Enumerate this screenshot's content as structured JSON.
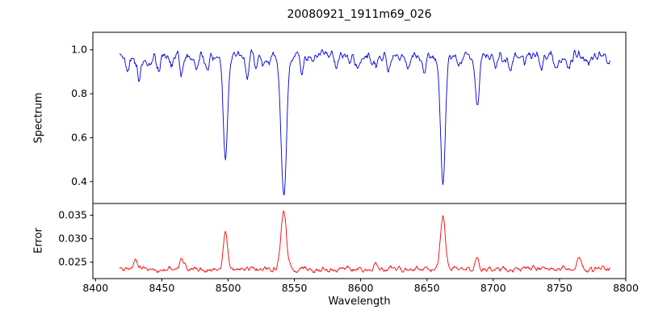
{
  "chart_data": {
    "type": "line",
    "title": "20080921_1911m69_026",
    "xlabel": "Wavelength",
    "xlim": [
      8398,
      8800
    ],
    "xticks": [
      8400,
      8450,
      8500,
      8550,
      8600,
      8650,
      8700,
      8750,
      8800
    ],
    "xtick_labels": [
      "8400",
      "8450",
      "8500",
      "8550",
      "8600",
      "8650",
      "8700",
      "8750",
      "8800"
    ],
    "x_start": 8418,
    "x_end": 8788,
    "background": "#ffffff",
    "axis_color": "#000000",
    "panels": [
      {
        "name": "spectrum",
        "ylabel": "Spectrum",
        "color": "#0000dd",
        "ylim": [
          0.3,
          1.08
        ],
        "yticks": [
          0.4,
          0.6,
          0.8,
          1.0
        ],
        "ytick_labels": [
          "0.4",
          "0.6",
          "0.8",
          "1.0"
        ],
        "continuum": 0.97,
        "noise_smooth": 0.022,
        "noise_white": 0.007,
        "absorption_lines": [
          {
            "center": 8498,
            "depth": 0.46,
            "sigma": 1.6
          },
          {
            "center": 8542,
            "depth": 0.63,
            "sigma": 2.0
          },
          {
            "center": 8662,
            "depth": 0.58,
            "sigma": 1.8
          },
          {
            "center": 8688,
            "depth": 0.24,
            "sigma": 1.4
          }
        ],
        "minor_lines": [
          {
            "center": 8424,
            "depth": 0.07
          },
          {
            "center": 8433,
            "depth": 0.1
          },
          {
            "center": 8440,
            "depth": 0.05
          },
          {
            "center": 8447,
            "depth": 0.06
          },
          {
            "center": 8457,
            "depth": 0.05
          },
          {
            "center": 8465,
            "depth": 0.08
          },
          {
            "center": 8476,
            "depth": 0.06
          },
          {
            "center": 8484,
            "depth": 0.05
          },
          {
            "center": 8514,
            "depth": 0.09
          },
          {
            "center": 8521,
            "depth": 0.06
          },
          {
            "center": 8528,
            "depth": 0.05
          },
          {
            "center": 8556,
            "depth": 0.05
          },
          {
            "center": 8564,
            "depth": 0.04
          },
          {
            "center": 8582,
            "depth": 0.06
          },
          {
            "center": 8598,
            "depth": 0.07
          },
          {
            "center": 8611,
            "depth": 0.05
          },
          {
            "center": 8621,
            "depth": 0.06
          },
          {
            "center": 8636,
            "depth": 0.05
          },
          {
            "center": 8648,
            "depth": 0.06
          },
          {
            "center": 8674,
            "depth": 0.08
          },
          {
            "center": 8702,
            "depth": 0.05
          },
          {
            "center": 8713,
            "depth": 0.06
          },
          {
            "center": 8724,
            "depth": 0.04
          },
          {
            "center": 8736,
            "depth": 0.05
          },
          {
            "center": 8747,
            "depth": 0.06
          },
          {
            "center": 8757,
            "depth": 0.05
          },
          {
            "center": 8772,
            "depth": 0.05
          }
        ]
      },
      {
        "name": "error",
        "ylabel": "Error",
        "color": "#ff0000",
        "ylim": [
          0.0215,
          0.0375
        ],
        "yticks": [
          0.025,
          0.03,
          0.035
        ],
        "ytick_labels": [
          "0.025",
          "0.030",
          "0.035"
        ],
        "baseline": 0.0235,
        "noise_smooth": 0.0005,
        "noise_white": 0.0002,
        "peaks": [
          {
            "center": 8498,
            "height": 0.0075,
            "sigma": 1.6
          },
          {
            "center": 8542,
            "height": 0.0125,
            "sigma": 2.0
          },
          {
            "center": 8662,
            "height": 0.0115,
            "sigma": 1.8
          },
          {
            "center": 8688,
            "height": 0.003,
            "sigma": 1.4
          },
          {
            "center": 8430,
            "height": 0.002,
            "sigma": 1.5
          },
          {
            "center": 8465,
            "height": 0.0022,
            "sigma": 1.5
          },
          {
            "center": 8612,
            "height": 0.0012,
            "sigma": 1.5
          },
          {
            "center": 8765,
            "height": 0.0028,
            "sigma": 1.5
          }
        ]
      }
    ]
  }
}
